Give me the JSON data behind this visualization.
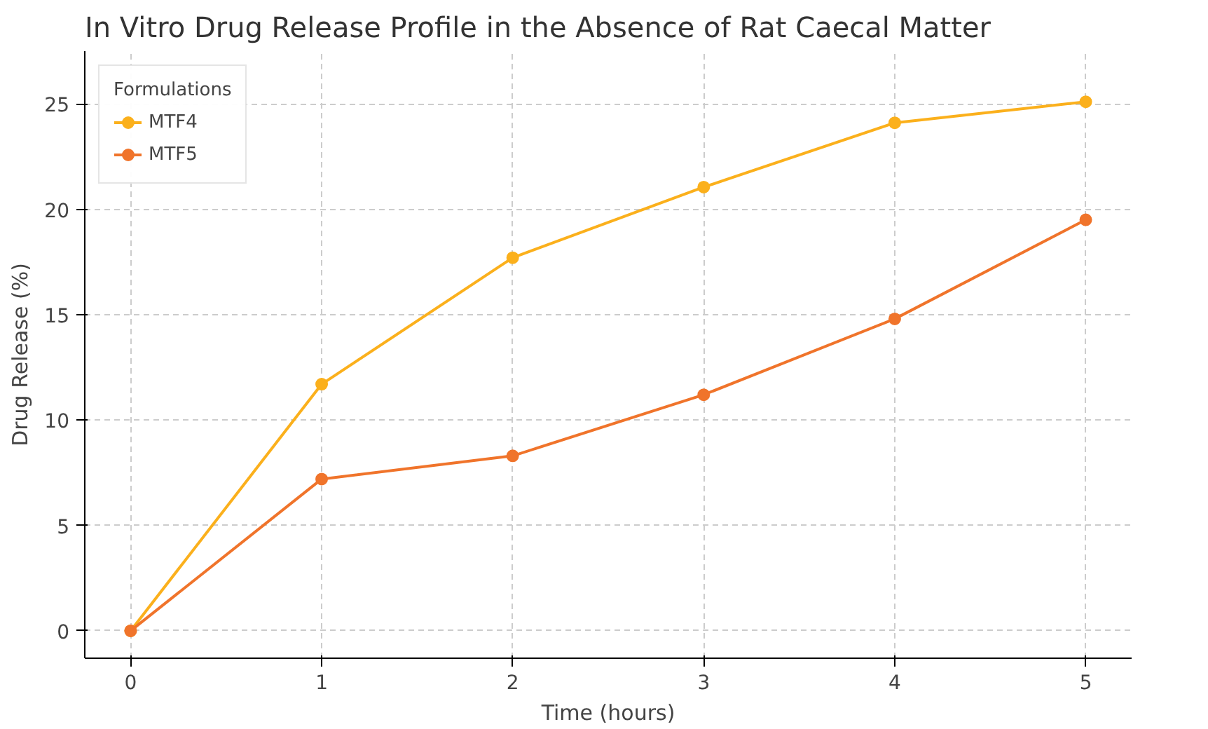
{
  "chart_data": {
    "type": "line",
    "title": "In Vitro Drug Release Profile in the Absence of Rat Caecal Matter",
    "xlabel": "Time (hours)",
    "ylabel": "Drug Release (%)",
    "legend_title": "Formulations",
    "x": [
      0,
      1,
      2,
      3,
      4,
      5
    ],
    "series": [
      {
        "name": "MTF4",
        "color": "#fbb01c",
        "values": [
          0,
          11.7,
          17.7,
          21.05,
          24.1,
          25.1
        ]
      },
      {
        "name": "MTF5",
        "color": "#f0742b",
        "values": [
          0,
          7.2,
          8.3,
          11.2,
          14.8,
          19.5
        ]
      }
    ],
    "xlim": [
      -0.24,
      5.24
    ],
    "ylim": [
      -1.3,
      27.5
    ],
    "xticks": [
      0,
      1,
      2,
      3,
      4,
      5
    ],
    "yticks": [
      0,
      5,
      10,
      15,
      20,
      25
    ],
    "grid": true,
    "legend": "top left",
    "marker": "circle",
    "line_style": "solid"
  }
}
